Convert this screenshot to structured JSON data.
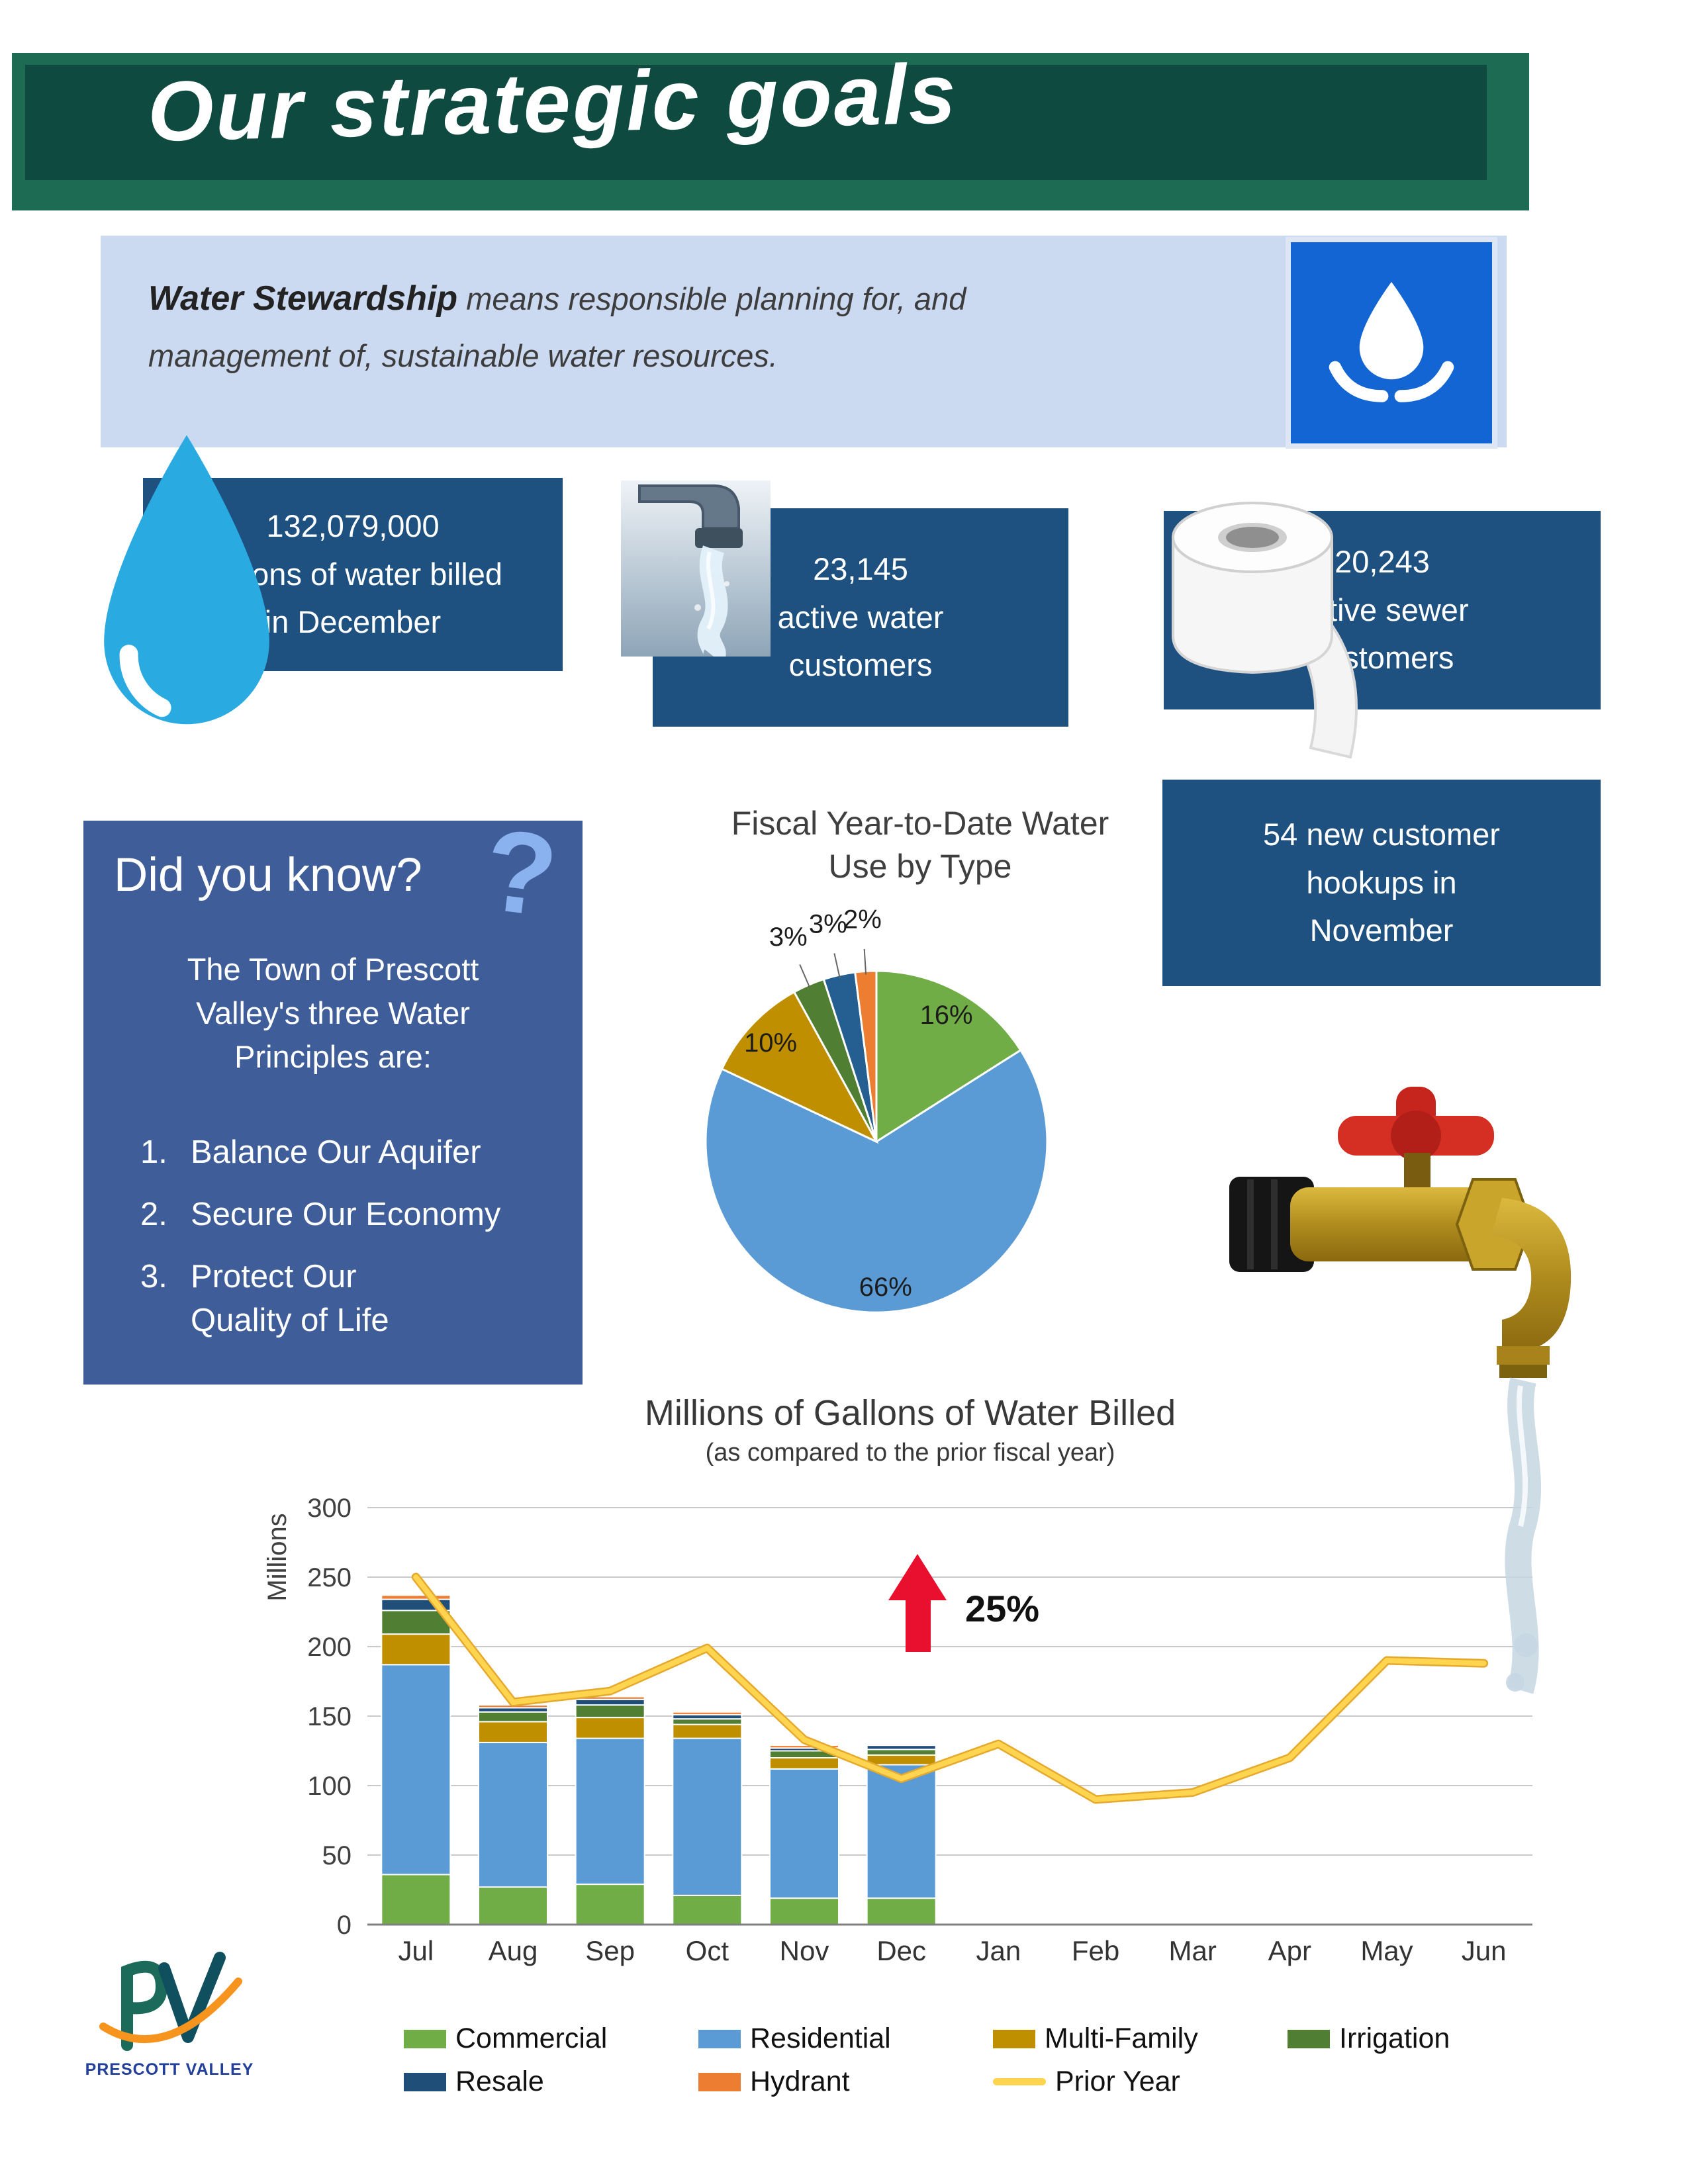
{
  "header": {
    "title": "Our strategic goals"
  },
  "stewardship": {
    "bold": "Water Stewardship",
    "line1_rest": " means responsible planning for, and",
    "line2": "management of, sustainable water resources.",
    "icon": "hands-holding-water-drop-icon",
    "icon_bg": "#1365d4"
  },
  "stats": [
    {
      "lines": [
        "132,079,000",
        "gallons of water billed",
        "in December"
      ]
    },
    {
      "lines": [
        "23,145",
        "active water",
        "customers"
      ]
    },
    {
      "lines": [
        "20,243",
        "active sewer",
        "customers"
      ]
    },
    {
      "lines": [
        "54 new customer",
        "hookups in",
        "November"
      ]
    }
  ],
  "did_you_know": {
    "title": "Did you know?",
    "question_mark": "?",
    "intro": "The Town of Prescott Valley's three Water Principles are:",
    "items": [
      {
        "num": "1.",
        "text": "Balance Our Aquifer"
      },
      {
        "num": "2.",
        "text": "Secure Our Economy"
      },
      {
        "num": "3.",
        "text": "Protect Our Quality of Life"
      }
    ]
  },
  "logo": {
    "text": "PRESCOTT VALLEY"
  },
  "colors": {
    "header_green": "#1e6b54",
    "header_green_dark": "#0e4a3f",
    "stat_box_blue": "#1f5180",
    "know_box_blue": "#3f5e99",
    "banner_blue": "#cbd9f1",
    "accent_red": "#e8102e",
    "drop_cyan": "#29aae1",
    "prior_year_yellow": "#ffd54f"
  },
  "chart_data": [
    {
      "type": "pie",
      "title": "Fiscal Year-to-Date Water Use by Type",
      "direction": "clockwise",
      "start": "top",
      "slices": [
        {
          "label": "Commercial",
          "value": 16,
          "display": "16%",
          "color": "#70ad47",
          "label_pos": "inside"
        },
        {
          "label": "Residential",
          "value": 66,
          "display": "66%",
          "color": "#5b9bd5",
          "label_pos": "inside"
        },
        {
          "label": "Multi-Family",
          "value": 10,
          "display": "10%",
          "color": "#bf8f00",
          "label_pos": "inside"
        },
        {
          "label": "Irrigation",
          "value": 3,
          "display": "3%",
          "color": "#507e32",
          "label_pos": "outside"
        },
        {
          "label": "Resale",
          "value": 3,
          "display": "3%",
          "color": "#255e91",
          "label_pos": "outside"
        },
        {
          "label": "Hydrant",
          "value": 2,
          "display": "2%",
          "color": "#ed7d31",
          "label_pos": "outside"
        }
      ]
    },
    {
      "type": "bar",
      "title": "Millions of Gallons of Water Billed",
      "subtitle": "(as compared to the prior fiscal year)",
      "ylabel": "Millions",
      "ylim": [
        0,
        300
      ],
      "ytick_step": 50,
      "grid": true,
      "categories": [
        "Jul",
        "Aug",
        "Sep",
        "Oct",
        "Nov",
        "Dec",
        "Jan",
        "Feb",
        "Mar",
        "Apr",
        "May",
        "Jun"
      ],
      "series": [
        {
          "name": "Commercial",
          "color": "#70ad47",
          "values": [
            36,
            27,
            29,
            21,
            19,
            19,
            0,
            0,
            0,
            0,
            0,
            0
          ]
        },
        {
          "name": "Residential",
          "color": "#5b9bd5",
          "values": [
            151,
            104,
            105,
            113,
            93,
            96,
            0,
            0,
            0,
            0,
            0,
            0
          ]
        },
        {
          "name": "Multi-Family",
          "color": "#bf8f00",
          "values": [
            22,
            15,
            15,
            10,
            8,
            7,
            0,
            0,
            0,
            0,
            0,
            0
          ]
        },
        {
          "name": "Irrigation",
          "color": "#507e32",
          "values": [
            17,
            7,
            9,
            4,
            5,
            4,
            0,
            0,
            0,
            0,
            0,
            0
          ]
        },
        {
          "name": "Resale",
          "color": "#1f4e79",
          "values": [
            8,
            3,
            4,
            3,
            2,
            3,
            0,
            0,
            0,
            0,
            0,
            0
          ]
        },
        {
          "name": "Hydrant",
          "color": "#ed7d31",
          "values": [
            3,
            2,
            2,
            2,
            2,
            1,
            0,
            0,
            0,
            0,
            0,
            0
          ]
        },
        {
          "name": "Prior Year",
          "kind": "line",
          "color": "#ffd54f",
          "edge_color": "#e5a92e",
          "values": [
            250,
            160,
            168,
            199,
            133,
            105,
            130,
            90,
            95,
            120,
            190,
            188
          ]
        }
      ],
      "annotation": {
        "text": "25%",
        "color": "#e8102e"
      }
    }
  ]
}
